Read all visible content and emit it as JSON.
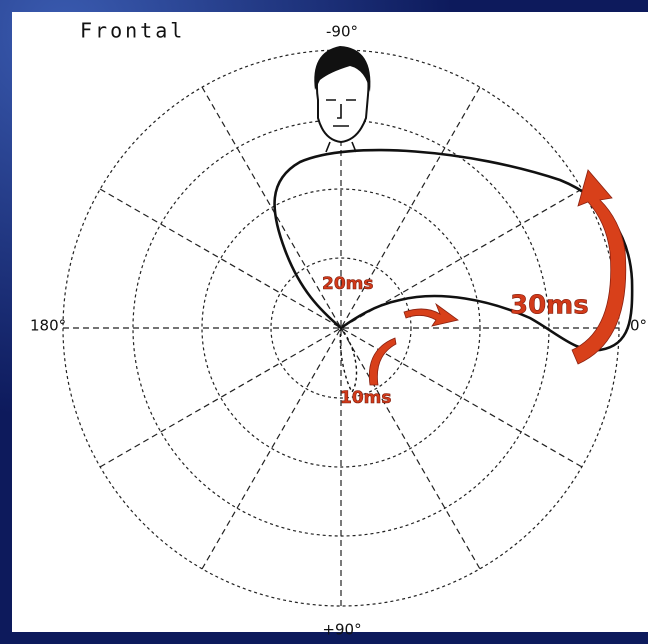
{
  "title": "Frontal",
  "axis_labels": {
    "top": "-90°",
    "left": "180°",
    "right": "0°",
    "bottom": "+90°"
  },
  "annotations": {
    "a": "20ms",
    "b": "10ms",
    "c": "30ms"
  }
}
